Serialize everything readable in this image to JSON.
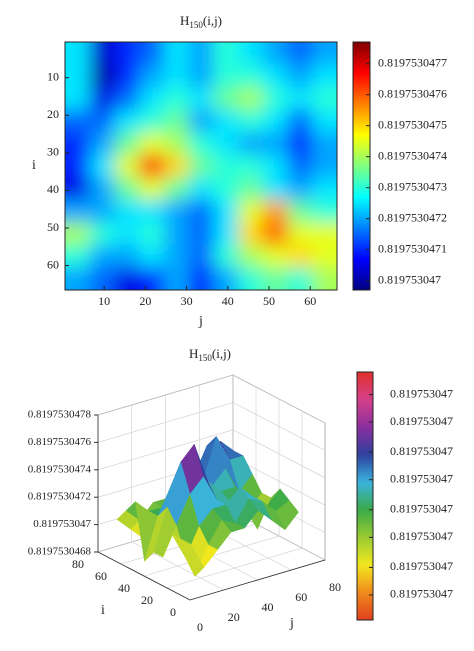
{
  "chart_data": [
    {
      "type": "heatmap",
      "title": "H",
      "title_subscript": "150",
      "title_suffix": "(i,j)",
      "x_label": "j",
      "y_label": "i",
      "x": [
        3.5,
        9.5,
        15.5,
        21.5,
        27.5,
        33.5,
        39.5,
        45.5,
        51.5,
        57.5,
        63.5
      ],
      "y": [
        3.5,
        9.5,
        15.5,
        21.5,
        27.5,
        33.5,
        39.5,
        45.5,
        51.5,
        57.5,
        63.5
      ],
      "z": [
        [
          0.81975304725,
          0.81975304703,
          0.8197530471,
          0.81975304715,
          0.81975304725,
          0.8197530472,
          0.8197530473,
          0.81975304725,
          0.8197530472,
          0.81975304715,
          0.8197530472
        ],
        [
          0.81975304725,
          0.819753047,
          0.8197530471,
          0.8197530472,
          0.81975304725,
          0.8197530472,
          0.8197530473,
          0.8197530473,
          0.81975304725,
          0.8197530472,
          0.81975304725
        ],
        [
          0.81975304725,
          0.81975304705,
          0.81975304715,
          0.81975304725,
          0.8197530473,
          0.81975304725,
          0.81975304735,
          0.8197530474,
          0.8197530473,
          0.81975304725,
          0.8197530473
        ],
        [
          0.81975304715,
          0.81975304715,
          0.81975304725,
          0.8197530473,
          0.81975304735,
          0.8197530472,
          0.81975304725,
          0.8197530473,
          0.81975304725,
          0.81975304715,
          0.81975304725
        ],
        [
          0.8197530471,
          0.8197530472,
          0.81975304735,
          0.81975304745,
          0.8197530474,
          0.8197530473,
          0.81975304725,
          0.8197530472,
          0.8197530472,
          0.8197530471,
          0.8197530472
        ],
        [
          0.8197530471,
          0.81975304725,
          0.81975304745,
          0.81975304765,
          0.8197530475,
          0.81975304735,
          0.8197530473,
          0.8197530473,
          0.81975304725,
          0.81975304715,
          0.8197530472
        ],
        [
          0.81975304705,
          0.8197530472,
          0.81975304735,
          0.81975304745,
          0.81975304735,
          0.81975304725,
          0.8197530473,
          0.81975304735,
          0.81975304725,
          0.8197530472,
          0.81975304725
        ],
        [
          0.8197530472,
          0.8197530472,
          0.81975304725,
          0.81975304725,
          0.8197530472,
          0.81975304715,
          0.81975304725,
          0.81975304745,
          0.81975304755,
          0.81975304735,
          0.8197530473
        ],
        [
          0.8197530474,
          0.8197530473,
          0.81975304725,
          0.8197530473,
          0.8197530472,
          0.81975304715,
          0.81975304725,
          0.8197530475,
          0.8197530476,
          0.81975304745,
          0.81975304745
        ],
        [
          0.8197530473,
          0.8197530472,
          0.8197530472,
          0.81975304725,
          0.8197530472,
          0.81975304715,
          0.8197530473,
          0.8197530474,
          0.81975304745,
          0.8197530475,
          0.81975304745
        ],
        [
          0.8197530472,
          0.81975304715,
          0.81975304705,
          0.8197530471,
          0.8197530472,
          0.8197530471,
          0.8197530472,
          0.8197530473,
          0.81975304735,
          0.8197530473,
          0.8197530474
        ]
      ],
      "xlim": [
        0.5,
        66.5
      ],
      "ylim": [
        0.5,
        66.5
      ],
      "xticks": [
        10,
        20,
        30,
        40,
        50,
        60
      ],
      "yticks": [
        10,
        20,
        30,
        40,
        50,
        60
      ],
      "y_reversed": true,
      "colormap": "jet",
      "clim": [
        0.81975304697,
        0.81975304777
      ],
      "cticks": [
        0.819753047,
        0.8197530471,
        0.8197530472,
        0.8197530473,
        0.8197530474,
        0.8197530475,
        0.8197530476,
        0.8197530477
      ]
    },
    {
      "type": "surface",
      "title": "H",
      "title_subscript": "150",
      "title_suffix": "(i,j)",
      "x_label": "j",
      "y_label": "i",
      "x": [
        1,
        9,
        17,
        25,
        33,
        41,
        49,
        57,
        65
      ],
      "y": [
        1,
        9,
        17,
        25,
        33,
        41,
        49,
        57,
        65
      ],
      "z": [
        [
          0.8197530472,
          0.819753047,
          0.8197530471,
          0.8197530472,
          0.8197530472,
          0.8197530473,
          0.8197530472,
          0.8197530471,
          0.8197530472
        ],
        [
          0.8197530472,
          0.8197530469,
          0.8197530471,
          0.81975304725,
          0.8197530472,
          0.81975304735,
          0.8197530473,
          0.8197530472,
          0.81975304725
        ],
        [
          0.8197530472,
          0.819753047,
          0.8197530472,
          0.8197530473,
          0.8197530473,
          0.8197530474,
          0.8197530473,
          0.8197530472,
          0.8197530473
        ],
        [
          0.819753047,
          0.8197530472,
          0.8197530474,
          0.8197530475,
          0.8197530473,
          0.81975304725,
          0.8197530472,
          0.819753047,
          0.8197530472
        ],
        [
          0.819753047,
          0.8197530473,
          0.8197530476,
          0.8197530477,
          0.8197530474,
          0.8197530473,
          0.8197530473,
          0.8197530471,
          0.8197530472
        ],
        [
          0.8197530469,
          0.8197530472,
          0.8197530474,
          0.8197530475,
          0.8197530472,
          0.8197530473,
          0.8197530474,
          0.8197530472,
          0.8197530473
        ],
        [
          0.8197530473,
          0.8197530472,
          0.8197530472,
          0.8197530472,
          0.819753047,
          0.8197530473,
          0.8197530476,
          0.8197530474,
          0.8197530474
        ],
        [
          0.8197530472,
          0.8197530471,
          0.8197530472,
          0.8197530472,
          0.819753047,
          0.8197530473,
          0.8197530475,
          0.8197530475,
          0.8197530474
        ],
        [
          0.8197530471,
          0.819753047,
          0.8197530469,
          0.819753047,
          0.8197530471,
          0.8197530472,
          0.8197530473,
          0.8197530473,
          0.8197530474
        ]
      ],
      "xlim": [
        0,
        80
      ],
      "ylim": [
        0,
        80
      ],
      "xticks": [
        0,
        20,
        40,
        60,
        80
      ],
      "yticks": [
        0,
        20,
        40,
        60,
        80
      ],
      "zlim": [
        0.8197530468,
        0.8197530478
      ],
      "zticks": [
        0.8197530468,
        0.819753047,
        0.8197530472,
        0.8197530474,
        0.8197530476,
        0.8197530478
      ],
      "grid": true,
      "colormap": [
        "#e0401e",
        "#f08a1c",
        "#f2e81e",
        "#9acb32",
        "#3aaa48",
        "#3ab4e0",
        "#2d3f9c",
        "#8a2f9e",
        "#d5408a",
        "#e0302c"
      ],
      "clim": [
        0.8197530465,
        0.81975304749
      ],
      "cticks": [
        {
          "value": 0.8197530466,
          "label": "0.819753047"
        },
        {
          "value": 0.81975304671,
          "label": "0.819753047"
        },
        {
          "value": 0.81975304683,
          "label": "0.819753047"
        },
        {
          "value": 0.81975304694,
          "label": "0.819753047"
        },
        {
          "value": 0.81975304706,
          "label": "0.819753047"
        },
        {
          "value": 0.81975304717,
          "label": "0.819753047"
        },
        {
          "value": 0.81975304729,
          "label": "0.819753047"
        },
        {
          "value": 0.8197530474,
          "label": "0.819753047"
        }
      ]
    }
  ]
}
